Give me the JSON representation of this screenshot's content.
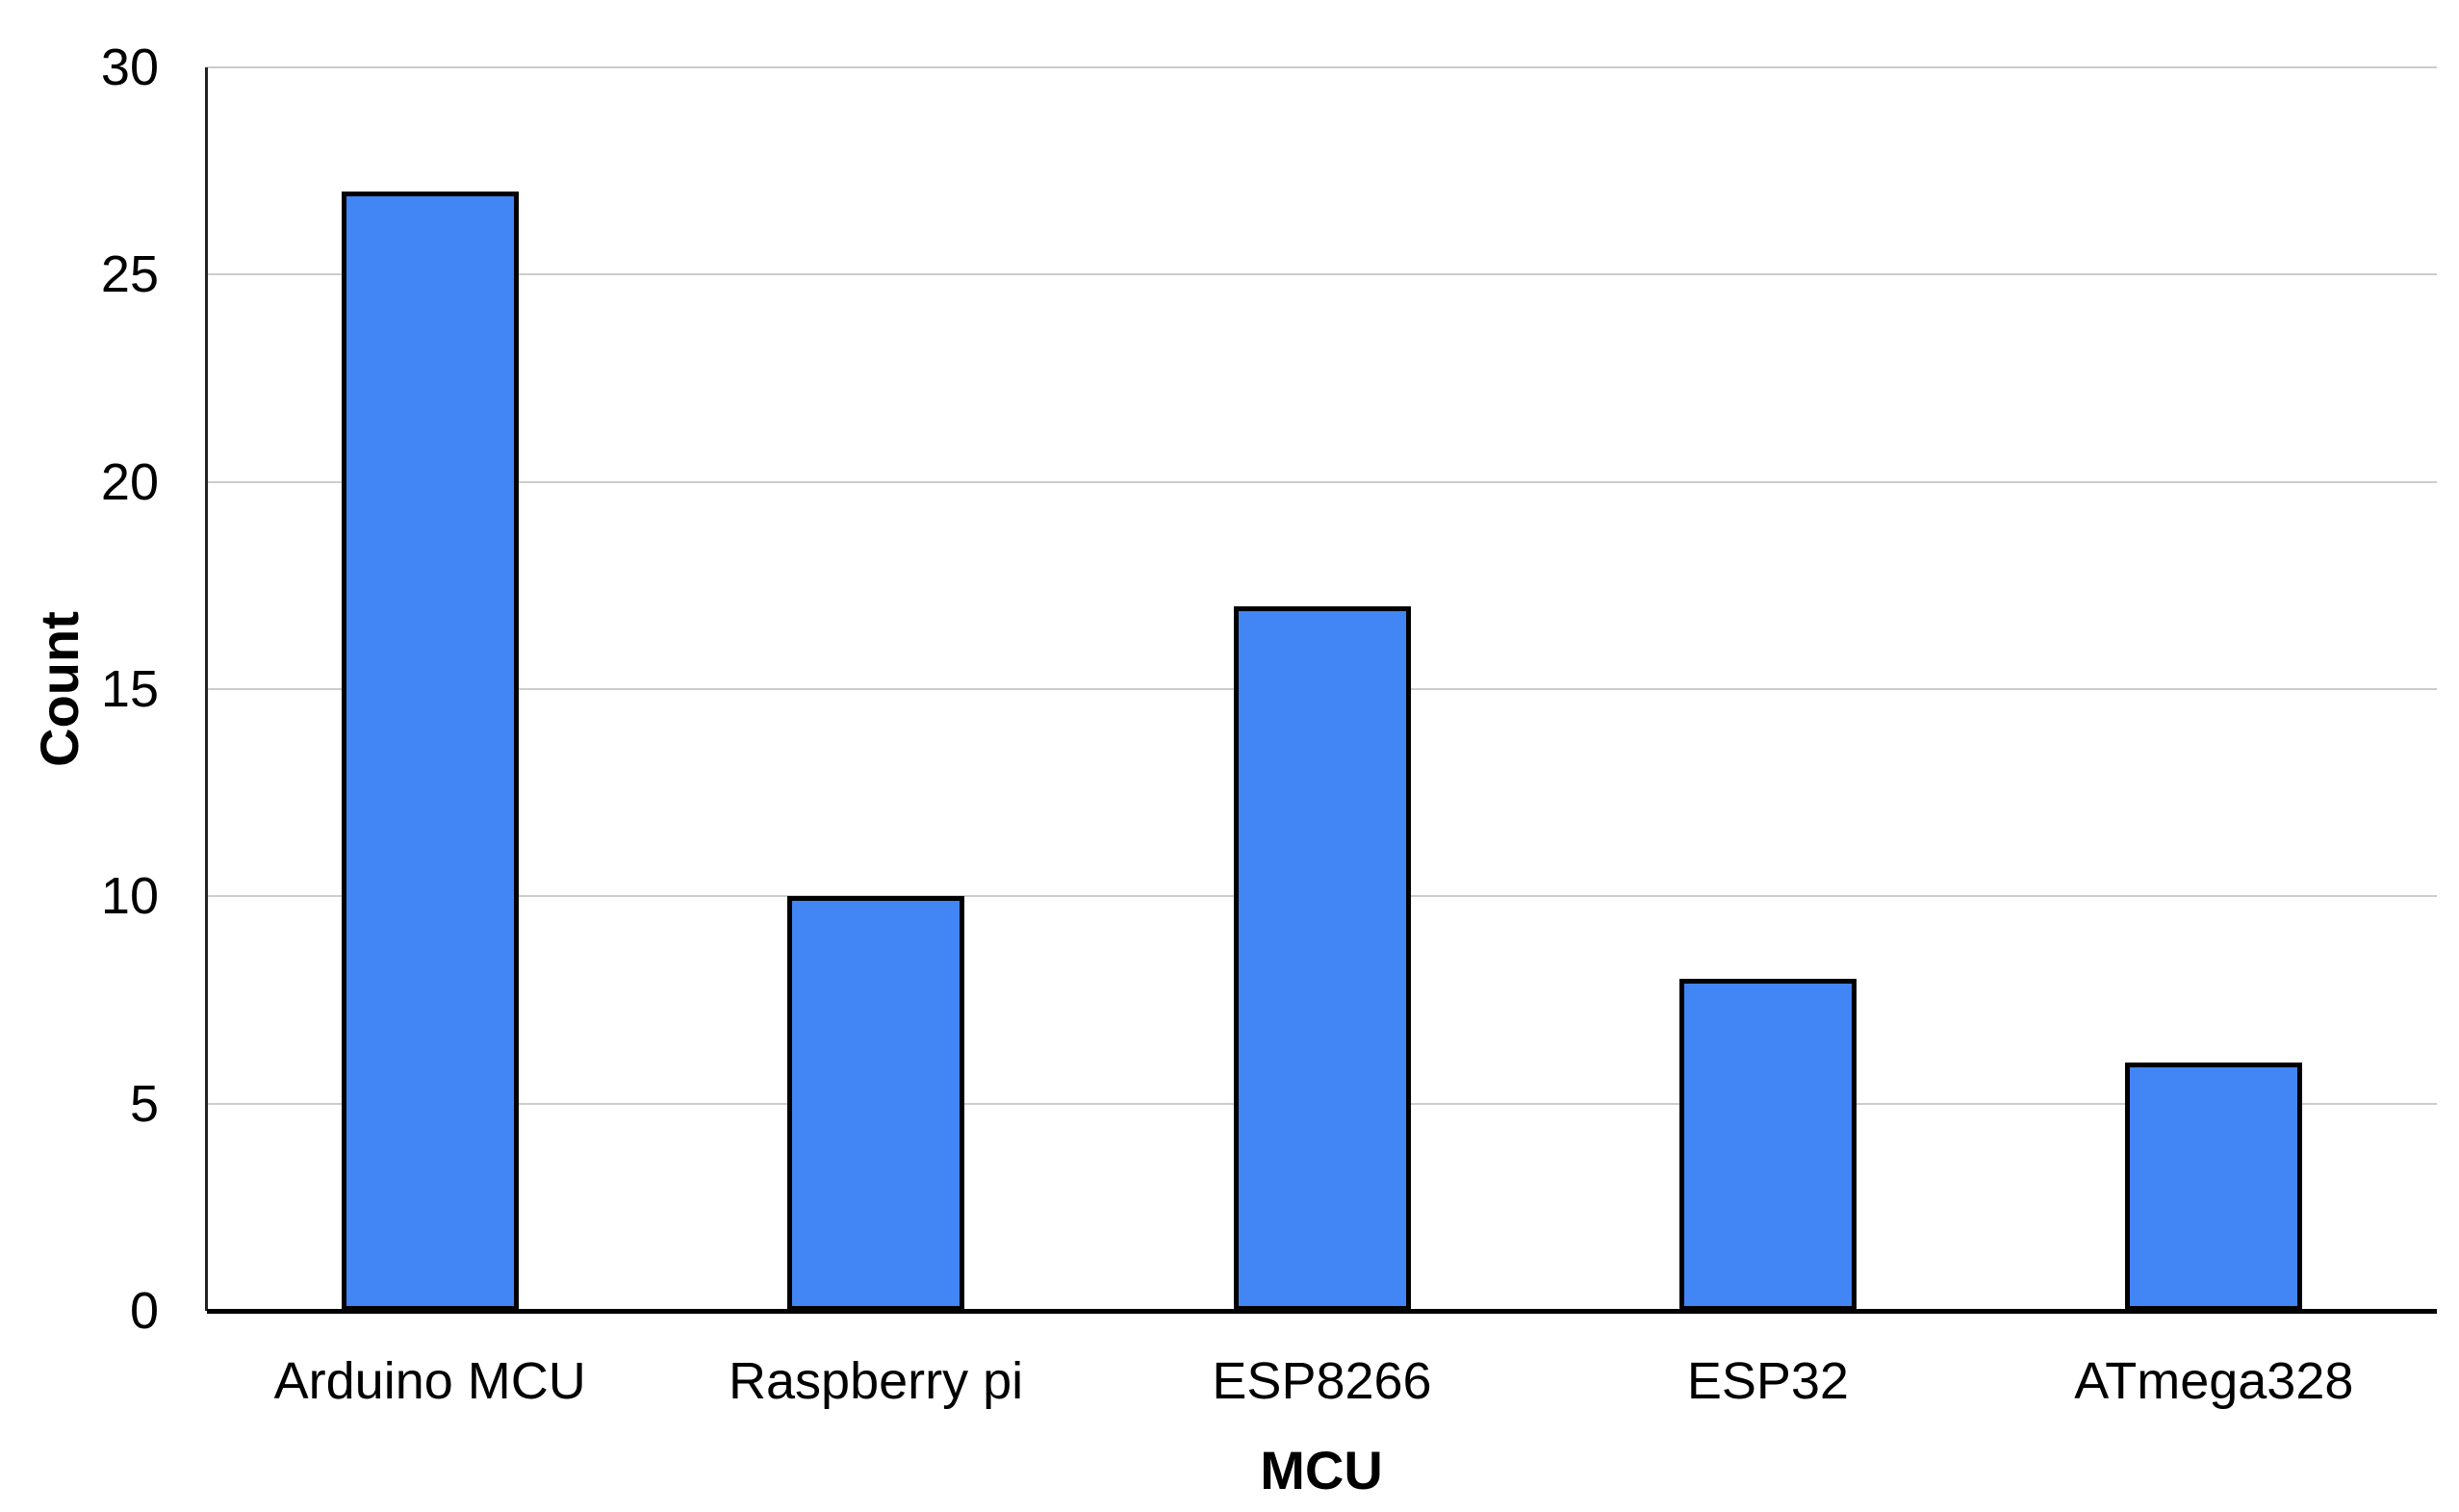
{
  "chart_data": {
    "type": "bar",
    "categories": [
      "Arduino MCU",
      "Raspberry pi",
      "ESP8266",
      "ESP32",
      "ATmega328"
    ],
    "values": [
      27,
      10,
      17,
      8,
      6
    ],
    "title": "",
    "xlabel": "MCU",
    "ylabel": "Count",
    "ylim": [
      0,
      30
    ],
    "y_ticks": [
      0,
      5,
      10,
      15,
      20,
      25,
      30
    ],
    "grid": true,
    "legend": false,
    "colors": {
      "bar_fill": "#4285f4",
      "bar_border": "#000000",
      "gridline": "#cccccc",
      "y_axis_line": "#222222",
      "x_axis_line": "#000000",
      "text": "#000000",
      "background": "#ffffff"
    }
  }
}
